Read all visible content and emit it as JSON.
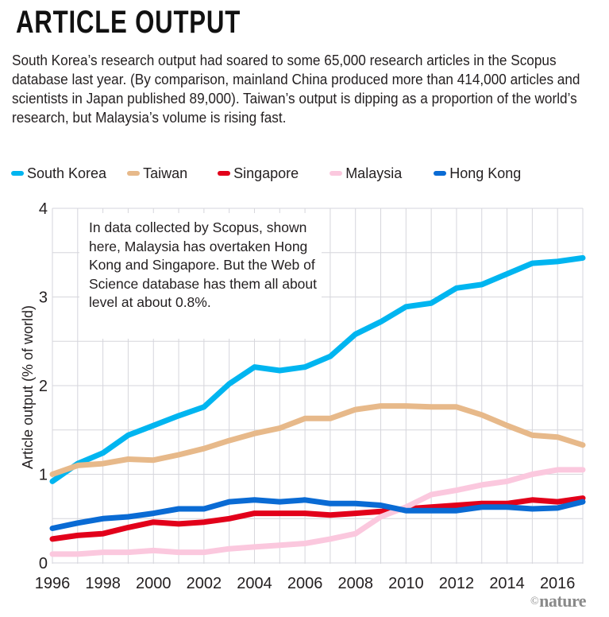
{
  "header": {
    "title": "ARTICLE OUTPUT",
    "subtitle": "South Korea’s research output had soared to some 65,000 research articles in the Scopus database last year. (By comparison, mainland China produced more than 414,000 articles and scientists in Japan published 89,000). Taiwan’s output is dipping as a proportion of the world’s research, but Malaysia’s volume is rising fast."
  },
  "annotation": "In data collected by Scopus, shown here, Malaysia has overtaken Hong Kong and Singapore. But the Web of Science database has them all about level at about 0.8%.",
  "credit": {
    "symbol": "©",
    "brand": "nature"
  },
  "chart_data": {
    "type": "line",
    "title": "ARTICLE OUTPUT",
    "xlabel": "",
    "ylabel": "Article output (% of world)",
    "x": [
      1996,
      1997,
      1998,
      1999,
      2000,
      2001,
      2002,
      2003,
      2004,
      2005,
      2006,
      2007,
      2008,
      2009,
      2010,
      2011,
      2012,
      2013,
      2014,
      2015,
      2016,
      2017
    ],
    "xlim": [
      1996,
      2017
    ],
    "ylim": [
      0,
      4
    ],
    "xticks": [
      "1996",
      "1998",
      "2000",
      "2002",
      "2004",
      "2006",
      "2008",
      "2010",
      "2012",
      "2014",
      "2016"
    ],
    "yticks": [
      "0",
      "1",
      "2",
      "3",
      "4"
    ],
    "grid": true,
    "legend_position": "top",
    "series": [
      {
        "name": "South Korea",
        "color": "#00b5f0",
        "values": [
          0.92,
          1.12,
          1.24,
          1.44,
          1.55,
          1.66,
          1.76,
          2.02,
          2.21,
          2.17,
          2.21,
          2.33,
          2.58,
          2.72,
          2.89,
          2.93,
          3.1,
          3.14,
          3.26,
          3.38,
          3.4,
          3.44
        ]
      },
      {
        "name": "Taiwan",
        "color": "#e7b98a",
        "values": [
          1.0,
          1.1,
          1.12,
          1.17,
          1.16,
          1.22,
          1.29,
          1.38,
          1.46,
          1.52,
          1.63,
          1.63,
          1.73,
          1.77,
          1.77,
          1.76,
          1.76,
          1.67,
          1.55,
          1.44,
          1.42,
          1.33
        ]
      },
      {
        "name": "Singapore",
        "color": "#e2001a",
        "values": [
          0.27,
          0.31,
          0.33,
          0.4,
          0.46,
          0.44,
          0.46,
          0.5,
          0.56,
          0.56,
          0.56,
          0.54,
          0.56,
          0.58,
          0.61,
          0.63,
          0.65,
          0.67,
          0.67,
          0.71,
          0.69,
          0.73
        ]
      },
      {
        "name": "Malaysia",
        "color": "#fbc8de",
        "values": [
          0.1,
          0.1,
          0.12,
          0.12,
          0.14,
          0.12,
          0.12,
          0.16,
          0.18,
          0.2,
          0.22,
          0.27,
          0.33,
          0.52,
          0.63,
          0.77,
          0.82,
          0.88,
          0.92,
          1.0,
          1.05,
          1.05
        ]
      },
      {
        "name": "Hong Kong",
        "color": "#0a6bd4",
        "values": [
          0.39,
          0.45,
          0.5,
          0.52,
          0.56,
          0.61,
          0.61,
          0.69,
          0.71,
          0.69,
          0.71,
          0.67,
          0.67,
          0.65,
          0.59,
          0.59,
          0.59,
          0.63,
          0.63,
          0.61,
          0.62,
          0.69
        ]
      }
    ]
  }
}
